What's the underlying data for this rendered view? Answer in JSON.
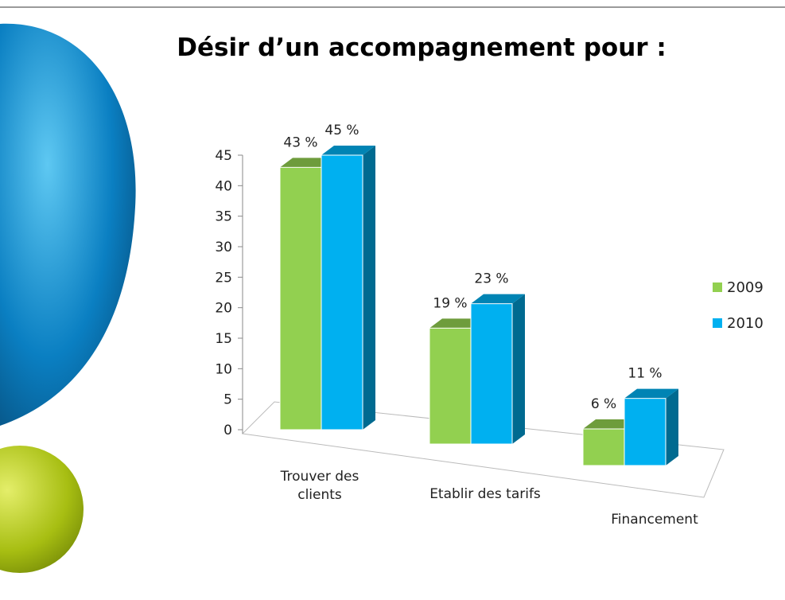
{
  "chart_data": {
    "type": "bar3d",
    "title": "Désir d’un accompagnement pour :",
    "categories": [
      "Trouver des clients",
      "Etablir des tarifs",
      "Financement"
    ],
    "series": [
      {
        "name": "2009",
        "color": "#92d050",
        "values": [
          43,
          19,
          6
        ],
        "value_labels": [
          "43 %",
          "19 %",
          "6 %"
        ]
      },
      {
        "name": "2010",
        "color": "#00b0f0",
        "values": [
          45,
          23,
          11
        ],
        "value_labels": [
          "45 %",
          "23 %",
          "11 %"
        ]
      }
    ],
    "ylim": [
      0,
      45
    ],
    "yticks": [
      0,
      5,
      10,
      15,
      20,
      25,
      30,
      35,
      40,
      45
    ],
    "legend": "right"
  }
}
